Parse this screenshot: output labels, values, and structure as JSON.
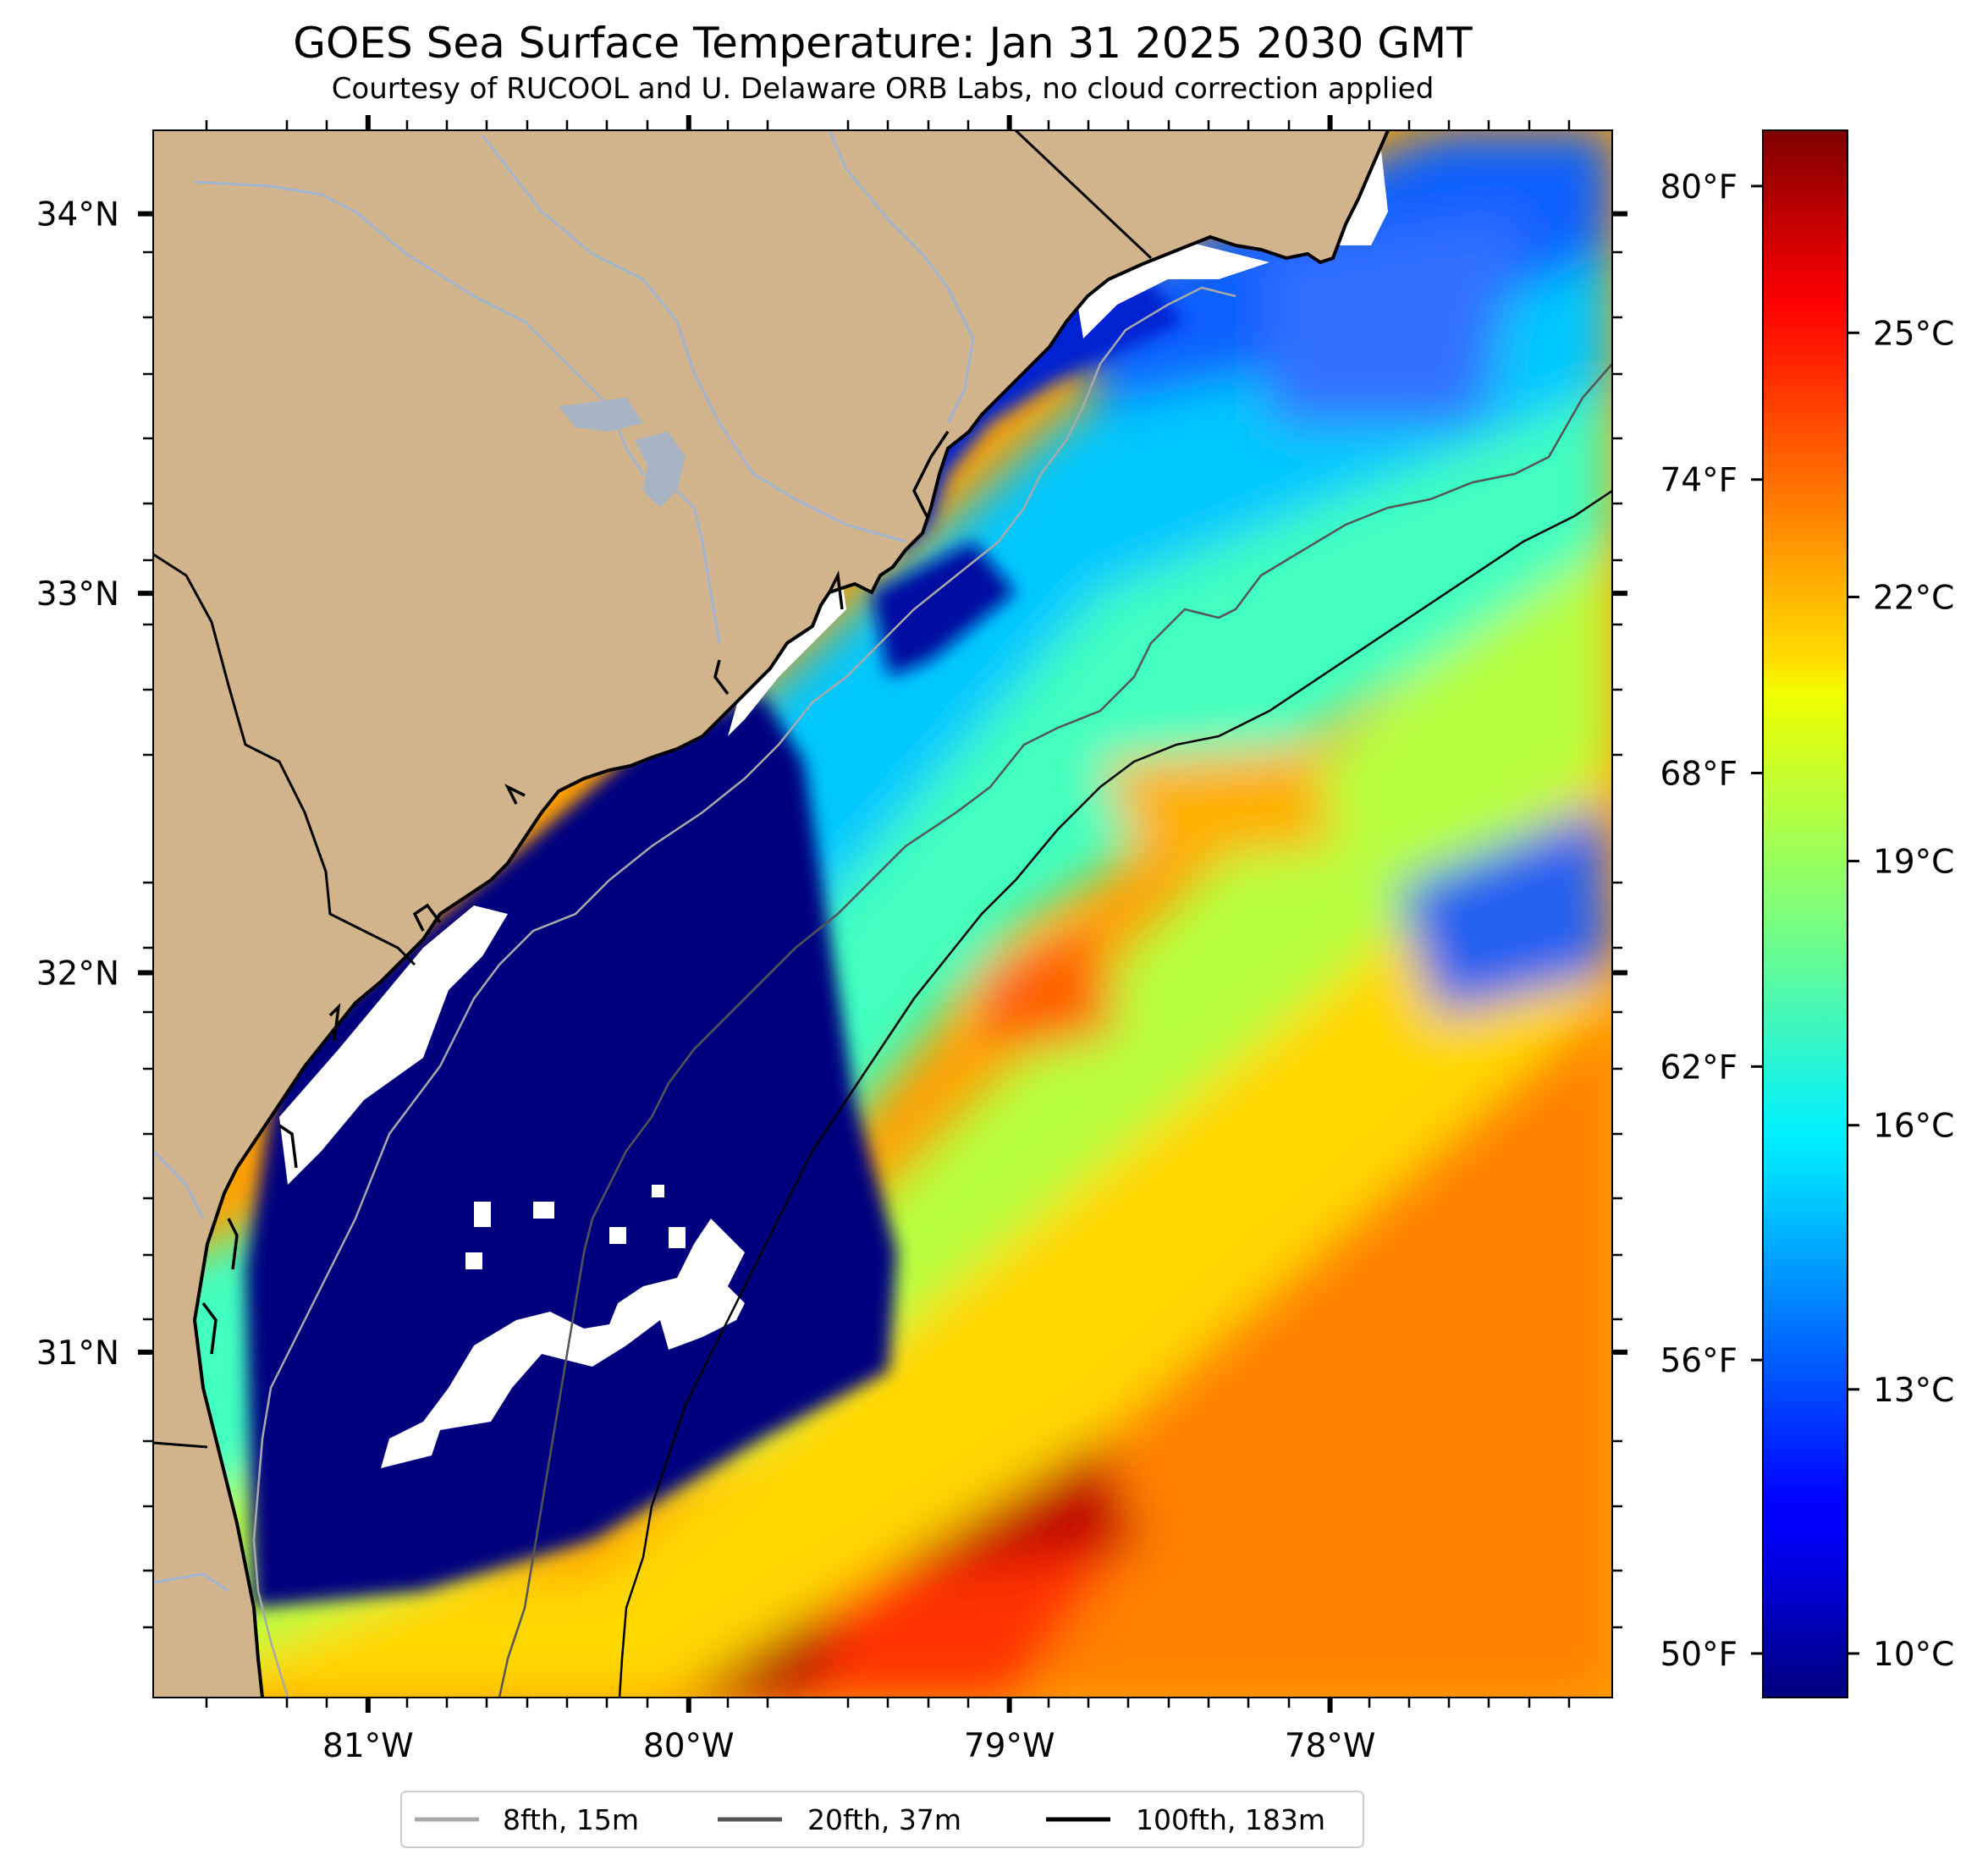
{
  "header": {
    "title": "GOES Sea Surface Temperature: Jan 31 2025 2030 GMT",
    "subtitle": "Courtesy of RUCOOL and U. Delaware ORB Labs, no cloud correction applied"
  },
  "map": {
    "lon_range": [
      -81.67,
      -77.12
    ],
    "lat_range": [
      30.09,
      34.22
    ],
    "lon_ticks": [
      {
        "value": -81,
        "label": "81°W"
      },
      {
        "value": -80,
        "label": "80°W"
      },
      {
        "value": -79,
        "label": "79°W"
      },
      {
        "value": -78,
        "label": "78°W"
      }
    ],
    "lat_ticks": [
      {
        "value": 34,
        "label": "34°N"
      },
      {
        "value": 33,
        "label": "33°N"
      },
      {
        "value": 32,
        "label": "32°N"
      },
      {
        "value": 31,
        "label": "31°N"
      }
    ],
    "land_color": "#d2b48c",
    "river_color": "#a0b4d0"
  },
  "colorbar": {
    "colormap": "jet",
    "range_c": [
      9.5,
      27.3
    ],
    "celsius_ticks": [
      {
        "value": 10,
        "label": "10°C"
      },
      {
        "value": 13,
        "label": "13°C"
      },
      {
        "value": 16,
        "label": "16°C"
      },
      {
        "value": 19,
        "label": "19°C"
      },
      {
        "value": 22,
        "label": "22°C"
      },
      {
        "value": 25,
        "label": "25°C"
      }
    ],
    "fahrenheit_ticks": [
      {
        "value": 50,
        "label": "50°F"
      },
      {
        "value": 56,
        "label": "56°F"
      },
      {
        "value": 62,
        "label": "62°F"
      },
      {
        "value": 68,
        "label": "68°F"
      },
      {
        "value": 74,
        "label": "74°F"
      },
      {
        "value": 80,
        "label": "80°F"
      }
    ]
  },
  "legend": {
    "items": [
      {
        "label": "8fth, 15m",
        "color": "#a9a9a9"
      },
      {
        "label": "20fth, 37m",
        "color": "#555555"
      },
      {
        "label": "100fth, 183m",
        "color": "#000000"
      }
    ]
  }
}
